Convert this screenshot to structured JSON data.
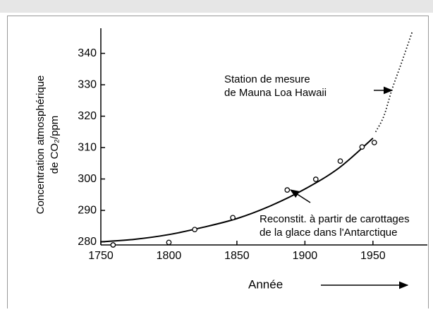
{
  "chart_data": {
    "type": "line",
    "y_label": [
      "Concentration atmosphérique",
      "de CO₂/ppm"
    ],
    "x_label": "Année",
    "annotations": [
      [
        "Station de mesure",
        "de Mauna Loa Hawaii"
      ],
      [
        "Reconstit. à partir de carottages",
        "de la glace dans l'Antarctique"
      ]
    ],
    "xlim": [
      1750,
      1990
    ],
    "xticks": [
      1750,
      1800,
      1850,
      1900,
      1950
    ],
    "ylim": [
      279,
      348
    ],
    "yticks": [
      280,
      290,
      300,
      310,
      320,
      330,
      340
    ],
    "series": [
      {
        "style": "solid",
        "color": "#000000",
        "x": [
          1750,
          1775,
          1800,
          1825,
          1850,
          1875,
          1900,
          1925,
          1950
        ],
        "values": [
          280,
          280.8,
          282.3,
          284.6,
          287.4,
          291.5,
          296.8,
          303.5,
          313
        ]
      },
      {
        "style": "dotted",
        "color": "#000000",
        "x": [
          1952,
          1958,
          1964,
          1971,
          1979
        ],
        "values": [
          315,
          320,
          328.5,
          337,
          347
        ]
      },
      {
        "style": "markers",
        "color": "#000000",
        "x": [
          1759,
          1800,
          1819,
          1847,
          1887,
          1908,
          1926,
          1942,
          1951
        ],
        "values": [
          279,
          279.8,
          283.9,
          287.7,
          296.5,
          299.9,
          305.7,
          310.2,
          311.6
        ]
      }
    ]
  }
}
